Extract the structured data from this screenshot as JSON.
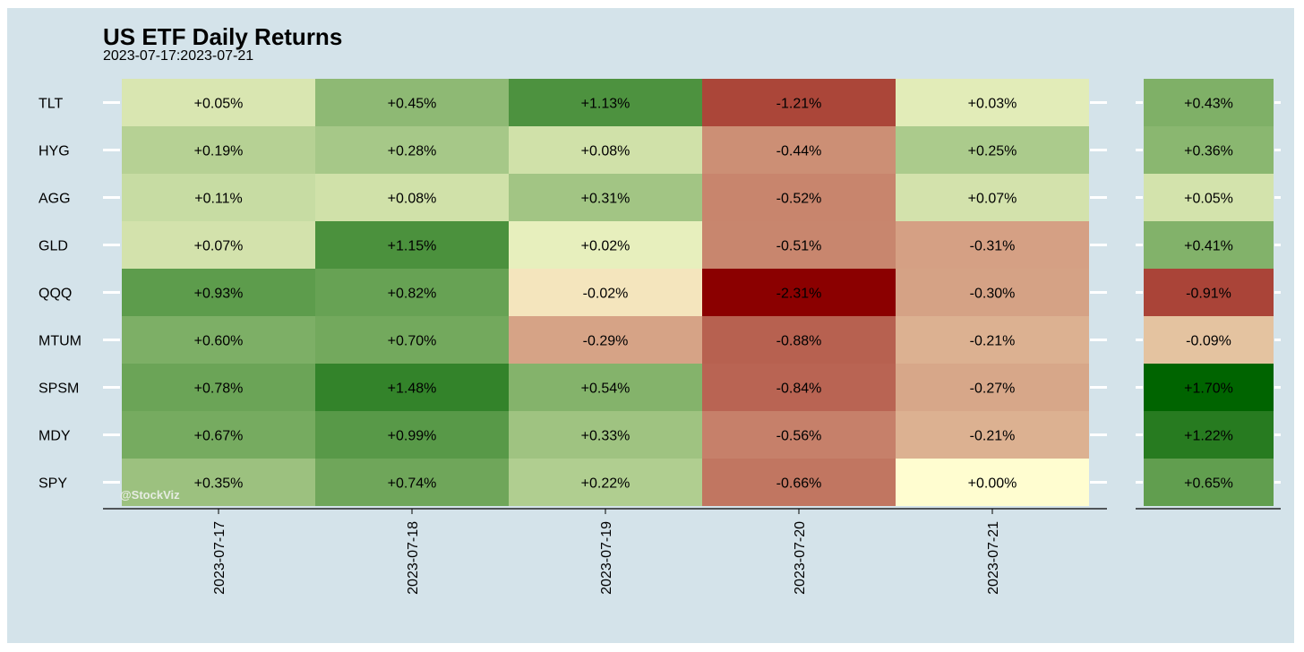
{
  "chart_data": {
    "type": "heatmap",
    "title": "US ETF Daily Returns",
    "subtitle": "2023-07-17:2023-07-21",
    "watermark": "@StockViz",
    "rows": [
      "TLT",
      "HYG",
      "AGG",
      "GLD",
      "QQQ",
      "MTUM",
      "SPSM",
      "MDY",
      "SPY"
    ],
    "columns": [
      "2023-07-17",
      "2023-07-18",
      "2023-07-19",
      "2023-07-20",
      "2023-07-21"
    ],
    "values": [
      [
        0.05,
        0.45,
        1.13,
        -1.21,
        0.03
      ],
      [
        0.19,
        0.28,
        0.08,
        -0.44,
        0.25
      ],
      [
        0.11,
        0.08,
        0.31,
        -0.52,
        0.07
      ],
      [
        0.07,
        1.15,
        0.02,
        -0.51,
        -0.31
      ],
      [
        0.93,
        0.82,
        -0.02,
        -2.31,
        -0.3
      ],
      [
        0.6,
        0.7,
        -0.29,
        -0.88,
        -0.21
      ],
      [
        0.78,
        1.48,
        0.54,
        -0.84,
        -0.27
      ],
      [
        0.67,
        0.99,
        0.33,
        -0.56,
        -0.21
      ],
      [
        0.35,
        0.74,
        0.22,
        -0.66,
        0.0
      ]
    ],
    "totals": [
      0.43,
      0.36,
      0.05,
      0.41,
      -0.91,
      -0.09,
      1.7,
      1.22,
      0.65
    ],
    "color_scale": {
      "negative": "#8b0000",
      "zero": "#fffdd0",
      "positive": "#006400"
    }
  }
}
